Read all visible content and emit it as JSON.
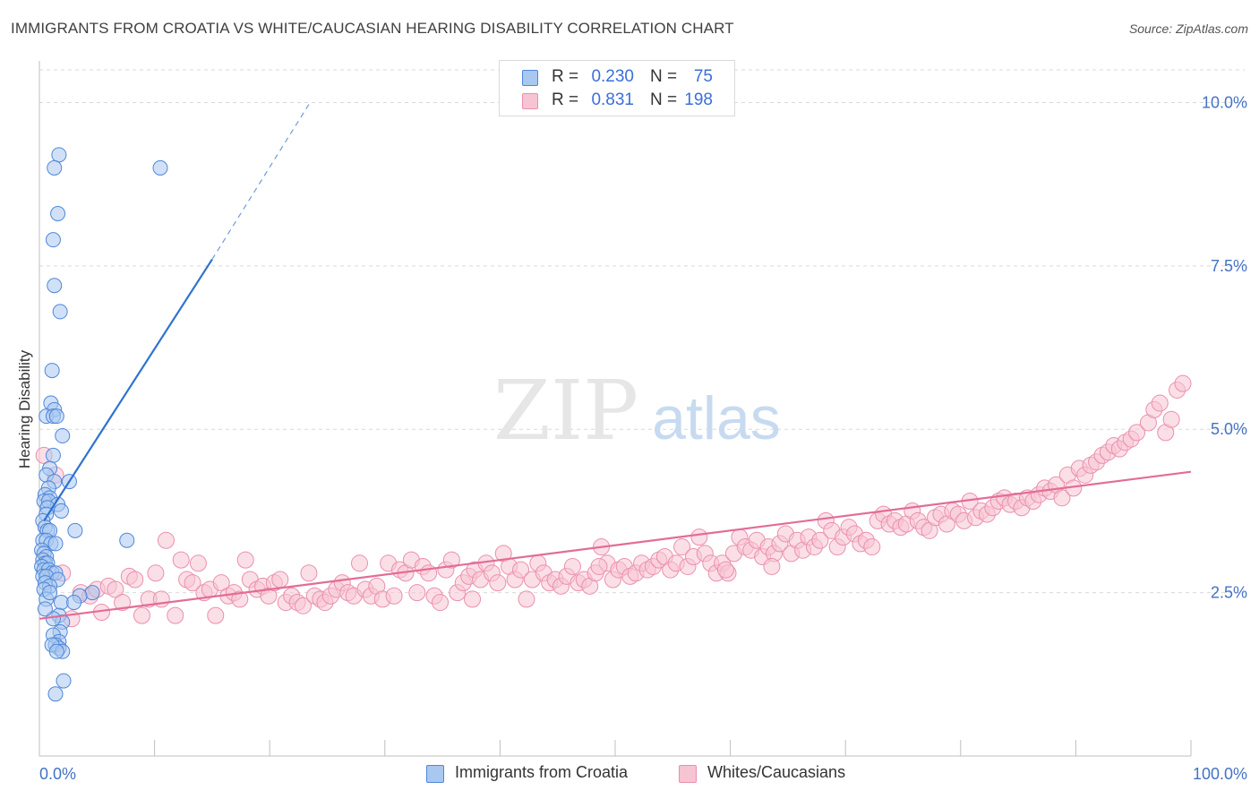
{
  "title": "IMMIGRANTS FROM CROATIA VS WHITE/CAUCASIAN HEARING DISABILITY CORRELATION CHART",
  "source": "Source: ZipAtlas.com",
  "watermark": {
    "zip": "ZIP",
    "atlas": "atlas"
  },
  "legend_top": [
    {
      "r_label": "R =",
      "r_value": "0.230",
      "n_label": "N =",
      "n_value": "75"
    },
    {
      "r_label": "R =",
      "r_value": "0.831",
      "n_label": "N =",
      "n_value": "198"
    }
  ],
  "legend_bottom": [
    "Immigrants from Croatia",
    "Whites/Caucasians"
  ],
  "colors": {
    "blue_fill": "#a9c8f0",
    "blue_stroke": "#4f86d9",
    "blue_line": "#2f72d0",
    "pink_fill": "#f7c4d4",
    "pink_stroke": "#ea8fae",
    "pink_line": "#e36c97",
    "tick_label": "#4472c4",
    "grid": "#d9d9d9"
  },
  "chart_data": {
    "type": "scatter",
    "title": "IMMIGRANTS FROM CROATIA VS WHITE/CAUCASIAN HEARING DISABILITY CORRELATION CHART",
    "xlabel": "",
    "ylabel": "Hearing Disability",
    "xlim": [
      0,
      100
    ],
    "ylim": [
      0,
      10.5
    ],
    "x_tick_labels": [
      "0.0%",
      "100.0%"
    ],
    "y_ticks": [
      2.5,
      5.0,
      7.5,
      10.0
    ],
    "y_tick_labels": [
      "2.5%",
      "5.0%",
      "7.5%",
      "10.0%"
    ],
    "grid": "horizontal dashed",
    "series": [
      {
        "name": "Immigrants from Croatia",
        "color": "#a9c8f0",
        "trend": {
          "x": [
            0.4,
            15.0,
            23.5
          ],
          "y": [
            3.6,
            7.6,
            10.0
          ],
          "solid_until": 15.0
        },
        "points": [
          [
            1.7,
            9.2
          ],
          [
            1.3,
            9.0
          ],
          [
            10.5,
            9.0
          ],
          [
            1.6,
            8.3
          ],
          [
            1.2,
            7.9
          ],
          [
            1.3,
            7.2
          ],
          [
            1.8,
            6.8
          ],
          [
            1.1,
            5.9
          ],
          [
            1.0,
            5.4
          ],
          [
            1.3,
            5.3
          ],
          [
            0.6,
            5.2
          ],
          [
            1.2,
            5.2
          ],
          [
            1.5,
            5.2
          ],
          [
            2.0,
            4.9
          ],
          [
            1.2,
            4.6
          ],
          [
            0.9,
            4.4
          ],
          [
            0.6,
            4.3
          ],
          [
            1.3,
            4.2
          ],
          [
            2.6,
            4.2
          ],
          [
            0.8,
            4.1
          ],
          [
            0.5,
            4.0
          ],
          [
            0.9,
            3.95
          ],
          [
            0.4,
            3.9
          ],
          [
            0.8,
            3.9
          ],
          [
            1.6,
            3.85
          ],
          [
            0.7,
            3.8
          ],
          [
            1.9,
            3.75
          ],
          [
            0.6,
            3.7
          ],
          [
            0.3,
            3.6
          ],
          [
            0.5,
            3.5
          ],
          [
            0.7,
            3.45
          ],
          [
            0.9,
            3.45
          ],
          [
            3.1,
            3.45
          ],
          [
            7.6,
            3.3
          ],
          [
            0.3,
            3.3
          ],
          [
            0.6,
            3.3
          ],
          [
            1.0,
            3.25
          ],
          [
            1.4,
            3.25
          ],
          [
            0.2,
            3.15
          ],
          [
            0.4,
            3.1
          ],
          [
            0.6,
            3.05
          ],
          [
            0.3,
            3.0
          ],
          [
            0.5,
            2.95
          ],
          [
            0.7,
            2.95
          ],
          [
            0.2,
            2.9
          ],
          [
            0.4,
            2.85
          ],
          [
            0.8,
            2.85
          ],
          [
            1.1,
            2.8
          ],
          [
            1.4,
            2.8
          ],
          [
            0.3,
            2.75
          ],
          [
            0.6,
            2.75
          ],
          [
            1.6,
            2.7
          ],
          [
            0.5,
            2.65
          ],
          [
            0.9,
            2.6
          ],
          [
            0.4,
            2.55
          ],
          [
            4.6,
            2.5
          ],
          [
            3.5,
            2.45
          ],
          [
            0.6,
            2.4
          ],
          [
            1.9,
            2.35
          ],
          [
            3.0,
            2.35
          ],
          [
            1.7,
            2.15
          ],
          [
            2.0,
            2.05
          ],
          [
            1.8,
            1.9
          ],
          [
            1.2,
            1.85
          ],
          [
            1.7,
            1.75
          ],
          [
            1.4,
            1.7
          ],
          [
            1.7,
            1.65
          ],
          [
            1.1,
            1.7
          ],
          [
            2.0,
            1.6
          ],
          [
            1.5,
            1.6
          ],
          [
            2.1,
            1.15
          ],
          [
            1.4,
            0.95
          ],
          [
            0.9,
            2.5
          ],
          [
            1.2,
            2.1
          ],
          [
            0.5,
            2.25
          ]
        ]
      },
      {
        "name": "Whites/Caucasians",
        "color": "#f7c4d4",
        "trend": {
          "x": [
            0.0,
            100.0
          ],
          "y": [
            2.1,
            4.35
          ]
        },
        "points": [
          [
            0.4,
            4.6
          ],
          [
            1.4,
            4.3
          ],
          [
            2.0,
            2.8
          ],
          [
            2.8,
            2.1
          ],
          [
            3.6,
            2.5
          ],
          [
            4.4,
            2.45
          ],
          [
            5.0,
            2.55
          ],
          [
            5.4,
            2.2
          ],
          [
            6.0,
            2.6
          ],
          [
            6.6,
            2.55
          ],
          [
            7.2,
            2.35
          ],
          [
            7.8,
            2.75
          ],
          [
            8.3,
            2.7
          ],
          [
            8.9,
            2.15
          ],
          [
            9.5,
            2.4
          ],
          [
            10.1,
            2.8
          ],
          [
            10.6,
            2.4
          ],
          [
            11.0,
            3.3
          ],
          [
            11.8,
            2.15
          ],
          [
            12.3,
            3.0
          ],
          [
            12.8,
            2.7
          ],
          [
            13.3,
            2.65
          ],
          [
            13.8,
            2.95
          ],
          [
            14.3,
            2.5
          ],
          [
            14.8,
            2.55
          ],
          [
            15.3,
            2.15
          ],
          [
            15.8,
            2.65
          ],
          [
            16.4,
            2.45
          ],
          [
            16.9,
            2.5
          ],
          [
            17.4,
            2.4
          ],
          [
            17.9,
            3.0
          ],
          [
            18.3,
            2.7
          ],
          [
            18.9,
            2.55
          ],
          [
            19.4,
            2.6
          ],
          [
            19.9,
            2.45
          ],
          [
            20.4,
            2.65
          ],
          [
            20.9,
            2.7
          ],
          [
            21.4,
            2.35
          ],
          [
            21.9,
            2.45
          ],
          [
            22.4,
            2.35
          ],
          [
            22.9,
            2.3
          ],
          [
            23.4,
            2.8
          ],
          [
            23.9,
            2.45
          ],
          [
            24.4,
            2.4
          ],
          [
            24.8,
            2.35
          ],
          [
            25.3,
            2.45
          ],
          [
            25.8,
            2.55
          ],
          [
            26.3,
            2.65
          ],
          [
            26.8,
            2.5
          ],
          [
            27.3,
            2.45
          ],
          [
            27.8,
            2.95
          ],
          [
            28.3,
            2.55
          ],
          [
            28.8,
            2.45
          ],
          [
            29.3,
            2.6
          ],
          [
            29.8,
            2.4
          ],
          [
            30.3,
            2.95
          ],
          [
            30.8,
            2.45
          ],
          [
            31.3,
            2.85
          ],
          [
            31.8,
            2.8
          ],
          [
            32.3,
            3.0
          ],
          [
            32.8,
            2.5
          ],
          [
            33.3,
            2.9
          ],
          [
            33.8,
            2.8
          ],
          [
            34.3,
            2.45
          ],
          [
            34.8,
            2.35
          ],
          [
            35.3,
            2.85
          ],
          [
            35.8,
            3.0
          ],
          [
            36.3,
            2.5
          ],
          [
            36.8,
            2.65
          ],
          [
            37.3,
            2.75
          ],
          [
            37.8,
            2.85
          ],
          [
            38.3,
            2.7
          ],
          [
            38.8,
            2.95
          ],
          [
            39.3,
            2.8
          ],
          [
            39.8,
            2.65
          ],
          [
            40.3,
            3.1
          ],
          [
            40.8,
            2.9
          ],
          [
            41.3,
            2.7
          ],
          [
            41.8,
            2.85
          ],
          [
            42.3,
            2.4
          ],
          [
            42.8,
            2.7
          ],
          [
            43.3,
            2.95
          ],
          [
            43.8,
            2.8
          ],
          [
            44.3,
            2.65
          ],
          [
            44.8,
            2.7
          ],
          [
            45.3,
            2.6
          ],
          [
            45.8,
            2.75
          ],
          [
            46.3,
            2.9
          ],
          [
            46.8,
            2.65
          ],
          [
            47.3,
            2.7
          ],
          [
            47.8,
            2.6
          ],
          [
            48.3,
            2.8
          ],
          [
            48.8,
            3.2
          ],
          [
            49.3,
            2.95
          ],
          [
            49.8,
            2.7
          ],
          [
            50.3,
            2.85
          ],
          [
            50.8,
            2.9
          ],
          [
            51.3,
            2.75
          ],
          [
            51.8,
            2.8
          ],
          [
            52.3,
            2.95
          ],
          [
            52.8,
            2.85
          ],
          [
            53.3,
            2.9
          ],
          [
            53.8,
            3.0
          ],
          [
            54.3,
            3.05
          ],
          [
            54.8,
            2.85
          ],
          [
            55.3,
            2.95
          ],
          [
            55.8,
            3.2
          ],
          [
            56.3,
            2.9
          ],
          [
            56.8,
            3.05
          ],
          [
            57.3,
            3.35
          ],
          [
            57.8,
            3.1
          ],
          [
            58.3,
            2.95
          ],
          [
            58.8,
            2.8
          ],
          [
            59.3,
            2.95
          ],
          [
            59.8,
            2.8
          ],
          [
            60.3,
            3.1
          ],
          [
            60.8,
            3.35
          ],
          [
            61.3,
            3.2
          ],
          [
            61.8,
            3.15
          ],
          [
            62.3,
            3.3
          ],
          [
            62.8,
            3.05
          ],
          [
            63.3,
            3.2
          ],
          [
            63.8,
            3.1
          ],
          [
            64.3,
            3.25
          ],
          [
            64.8,
            3.4
          ],
          [
            65.3,
            3.1
          ],
          [
            65.8,
            3.3
          ],
          [
            66.3,
            3.15
          ],
          [
            66.8,
            3.35
          ],
          [
            67.3,
            3.2
          ],
          [
            67.8,
            3.3
          ],
          [
            68.3,
            3.6
          ],
          [
            68.8,
            3.45
          ],
          [
            69.3,
            3.2
          ],
          [
            69.8,
            3.35
          ],
          [
            70.3,
            3.5
          ],
          [
            70.8,
            3.4
          ],
          [
            71.3,
            3.25
          ],
          [
            71.8,
            3.3
          ],
          [
            72.3,
            3.2
          ],
          [
            72.8,
            3.6
          ],
          [
            73.3,
            3.7
          ],
          [
            73.8,
            3.55
          ],
          [
            74.3,
            3.6
          ],
          [
            74.8,
            3.5
          ],
          [
            75.3,
            3.55
          ],
          [
            75.8,
            3.75
          ],
          [
            76.3,
            3.6
          ],
          [
            76.8,
            3.5
          ],
          [
            77.3,
            3.45
          ],
          [
            77.8,
            3.65
          ],
          [
            78.3,
            3.7
          ],
          [
            78.8,
            3.55
          ],
          [
            79.3,
            3.75
          ],
          [
            79.8,
            3.7
          ],
          [
            80.3,
            3.6
          ],
          [
            80.8,
            3.9
          ],
          [
            81.3,
            3.65
          ],
          [
            81.8,
            3.75
          ],
          [
            82.3,
            3.7
          ],
          [
            82.8,
            3.8
          ],
          [
            83.3,
            3.9
          ],
          [
            83.8,
            3.95
          ],
          [
            84.3,
            3.85
          ],
          [
            84.8,
            3.9
          ],
          [
            85.3,
            3.8
          ],
          [
            85.8,
            3.95
          ],
          [
            86.3,
            3.9
          ],
          [
            86.8,
            4.0
          ],
          [
            87.3,
            4.1
          ],
          [
            87.8,
            4.05
          ],
          [
            88.3,
            4.15
          ],
          [
            88.8,
            3.95
          ],
          [
            89.3,
            4.3
          ],
          [
            89.8,
            4.1
          ],
          [
            90.3,
            4.4
          ],
          [
            90.8,
            4.3
          ],
          [
            91.3,
            4.45
          ],
          [
            91.8,
            4.5
          ],
          [
            92.3,
            4.6
          ],
          [
            92.8,
            4.65
          ],
          [
            93.3,
            4.75
          ],
          [
            93.8,
            4.7
          ],
          [
            94.3,
            4.8
          ],
          [
            94.8,
            4.85
          ],
          [
            95.3,
            4.95
          ],
          [
            96.3,
            5.1
          ],
          [
            96.8,
            5.3
          ],
          [
            97.3,
            5.4
          ],
          [
            97.8,
            4.95
          ],
          [
            98.3,
            5.15
          ],
          [
            98.8,
            5.6
          ],
          [
            99.3,
            5.7
          ],
          [
            37.6,
            2.4
          ],
          [
            48.6,
            2.9
          ],
          [
            59.6,
            2.85
          ],
          [
            63.6,
            2.9
          ]
        ]
      }
    ]
  }
}
